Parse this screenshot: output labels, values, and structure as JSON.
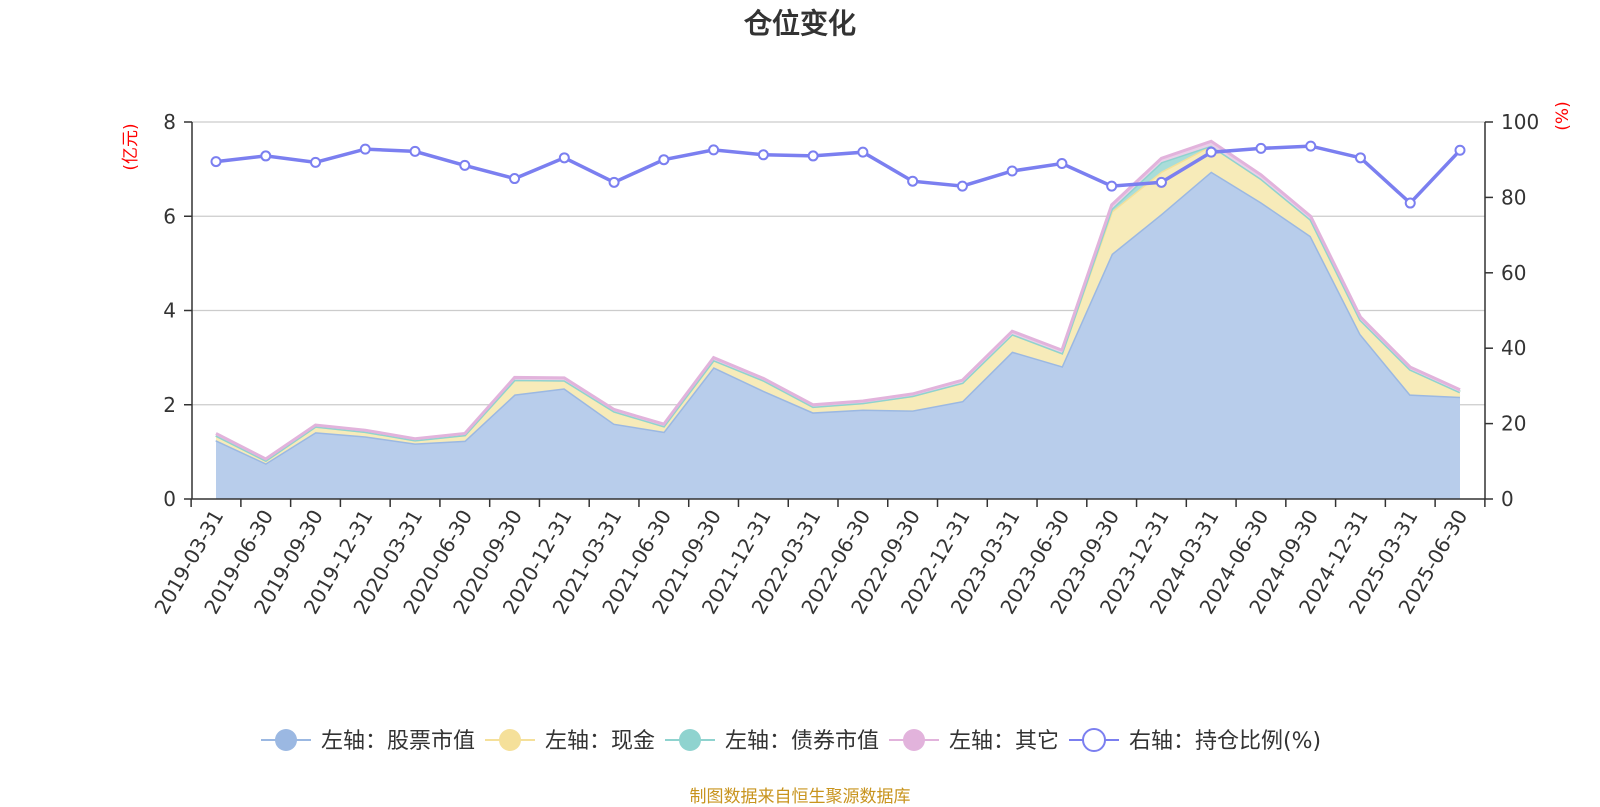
{
  "title": "仓位变化",
  "source_note": "制图数据来自恒生聚源数据库",
  "chart_data": {
    "type": "area",
    "title": "仓位变化",
    "categories": [
      "2019-03-31",
      "2019-06-30",
      "2019-09-30",
      "2019-12-31",
      "2020-03-31",
      "2020-06-30",
      "2020-09-30",
      "2020-12-31",
      "2021-03-31",
      "2021-06-30",
      "2021-09-30",
      "2021-12-31",
      "2022-03-31",
      "2022-06-30",
      "2022-09-30",
      "2022-12-31",
      "2023-03-31",
      "2023-06-30",
      "2023-09-30",
      "2023-12-31",
      "2024-03-31",
      "2024-06-30",
      "2024-09-30",
      "2024-12-31",
      "2025-03-31",
      "2025-06-30"
    ],
    "left_axis": {
      "unit": "(亿元)",
      "ylim": [
        0,
        8
      ],
      "ticks": [
        0,
        2,
        4,
        6,
        8
      ],
      "color": "#ff0000"
    },
    "right_axis": {
      "unit": "(%)",
      "ylim": [
        0,
        100
      ],
      "ticks": [
        0,
        20,
        40,
        60,
        80,
        100
      ],
      "color": "#ff0000"
    },
    "grid": true,
    "legend_position": "bottom",
    "stacked": true,
    "series": [
      {
        "name": "左轴：股票市值",
        "axis": "left",
        "kind": "area",
        "color": "#9bb8e2",
        "fill": "#b8cdeb",
        "values": [
          1.25,
          0.76,
          1.42,
          1.33,
          1.18,
          1.24,
          2.22,
          2.35,
          1.6,
          1.43,
          2.8,
          2.3,
          1.84,
          1.9,
          1.88,
          2.08,
          3.13,
          2.82,
          5.2,
          6.05,
          6.95,
          6.3,
          5.58,
          3.5,
          2.22,
          2.17
        ]
      },
      {
        "name": "左轴：现金",
        "axis": "left",
        "kind": "area",
        "color": "#f5e09a",
        "fill": "#f7ebb9",
        "values": [
          0.1,
          0.06,
          0.12,
          0.1,
          0.07,
          0.12,
          0.31,
          0.17,
          0.26,
          0.12,
          0.15,
          0.22,
          0.12,
          0.14,
          0.31,
          0.39,
          0.37,
          0.28,
          0.9,
          0.9,
          0.55,
          0.5,
          0.35,
          0.3,
          0.53,
          0.1
        ]
      },
      {
        "name": "左轴：债券市值",
        "axis": "left",
        "kind": "area",
        "color": "#8fd3cf",
        "fill": "#a9ddd9",
        "values": [
          0,
          0,
          0,
          0,
          0,
          0,
          0,
          0,
          0,
          0,
          0,
          0,
          0,
          0,
          0,
          0,
          0,
          0,
          0.06,
          0.2,
          0,
          0,
          0,
          0,
          0,
          0
        ]
      },
      {
        "name": "左轴：其它",
        "axis": "left",
        "kind": "area",
        "color": "#e2b3dc",
        "fill": "#ead0e8",
        "values": [
          0.04,
          0.03,
          0.03,
          0.03,
          0.03,
          0.03,
          0.05,
          0.05,
          0.04,
          0.04,
          0.05,
          0.04,
          0.04,
          0.04,
          0.04,
          0.05,
          0.06,
          0.06,
          0.08,
          0.08,
          0.09,
          0.08,
          0.07,
          0.06,
          0.05,
          0.05
        ]
      },
      {
        "name": "右轴：持仓比例(%)",
        "axis": "right",
        "kind": "line",
        "color": "#7b7ff0",
        "values": [
          89.5,
          91,
          89.3,
          92.8,
          92.2,
          88.5,
          85,
          90.5,
          84,
          90,
          92.6,
          91.3,
          91,
          92,
          84.3,
          83,
          87,
          89,
          83,
          84,
          92,
          93,
          93.6,
          90.5,
          78.5,
          92.5
        ]
      }
    ]
  }
}
